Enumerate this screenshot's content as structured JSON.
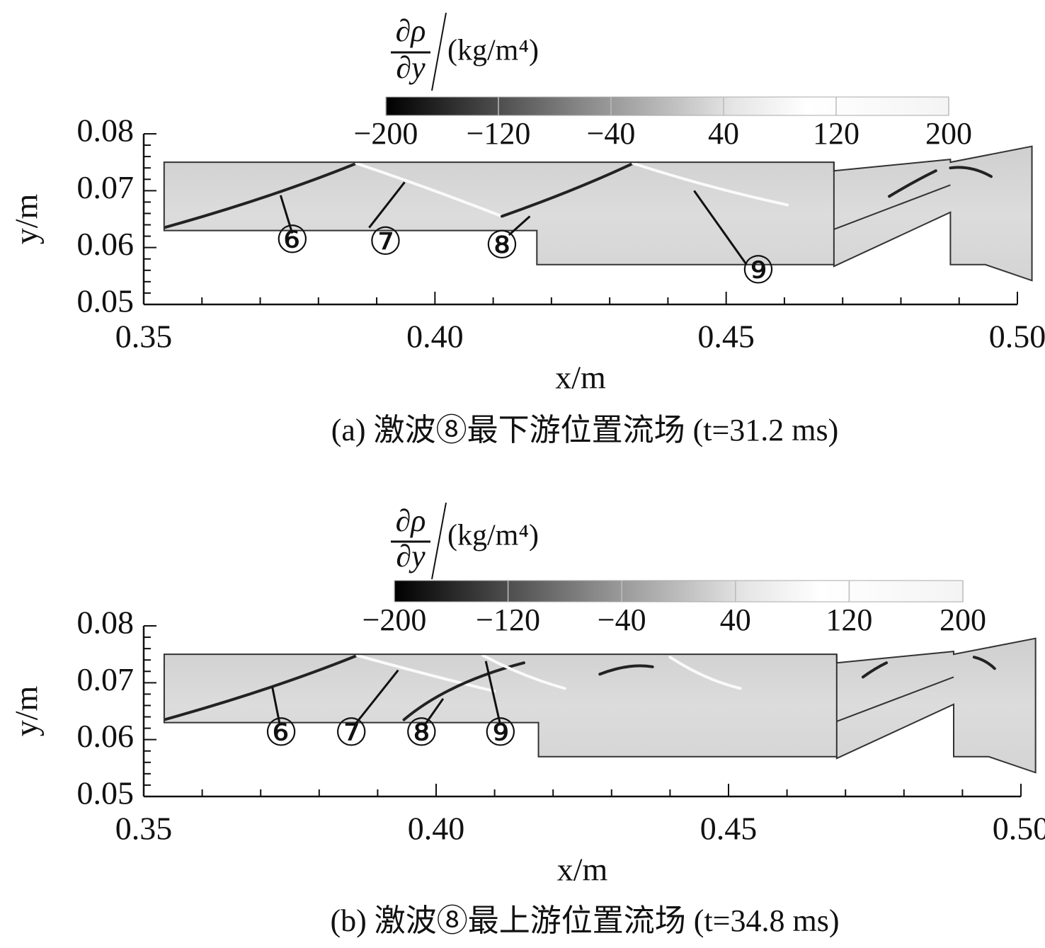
{
  "chart_data": [
    {
      "type": "contour",
      "colorbar_numerator": "∂ρ",
      "colorbar_denominator": "∂y",
      "colorbar_unit": "(kg/m⁴)",
      "colorbar_lim": [
        -200,
        200
      ],
      "colorbar_ticks": [
        {
          "value": -200,
          "label": "−200"
        },
        {
          "value": -120,
          "label": "−120"
        },
        {
          "value": -40,
          "label": "−40"
        },
        40,
        120,
        200
      ],
      "x_label": "x/m",
      "y_label": "y/m",
      "xlim": [
        0.35,
        0.5
      ],
      "ylim": [
        0.05,
        0.08
      ],
      "xticks": [
        0.35,
        {
          "value": 0.4,
          "label": "0.40"
        },
        0.45,
        {
          "value": 0.5,
          "label": "0.50"
        }
      ],
      "yticks": [
        0.05,
        0.06,
        0.07,
        0.08
      ],
      "annotations": [
        "⑥",
        "⑦",
        "⑧",
        "⑨"
      ],
      "caption": "(a) 激波⑧最下游位置流场 (t=31.2 ms)"
    },
    {
      "type": "contour",
      "colorbar_numerator": "∂ρ",
      "colorbar_denominator": "∂y",
      "colorbar_unit": "(kg/m⁴)",
      "colorbar_lim": [
        -200,
        200
      ],
      "colorbar_ticks": [
        {
          "value": -200,
          "label": "−200"
        },
        {
          "value": -120,
          "label": "−120"
        },
        {
          "value": -40,
          "label": "−40"
        },
        40,
        120,
        200
      ],
      "x_label": "x/m",
      "y_label": "y/m",
      "xlim": [
        0.35,
        0.5
      ],
      "ylim": [
        0.05,
        0.08
      ],
      "xticks": [
        0.35,
        {
          "value": 0.4,
          "label": "0.40"
        },
        0.45,
        {
          "value": 0.5,
          "label": "0.50"
        }
      ],
      "yticks": [
        0.05,
        0.06,
        0.07,
        0.08
      ],
      "annotations": [
        "⑥",
        "⑦",
        "⑧",
        "⑨"
      ],
      "caption": "(b) 激波⑧最上游位置流场 (t=34.8 ms)"
    }
  ]
}
